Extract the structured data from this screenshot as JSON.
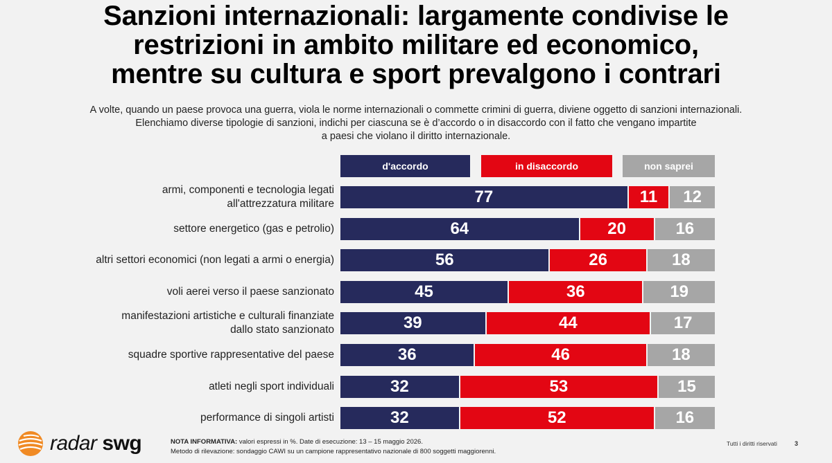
{
  "title_lines": [
    "Sanzioni internazionali: largamente condivise le",
    "restrizioni in ambito militare ed economico,",
    "mentre su cultura e sport prevalgono i contrari"
  ],
  "subtitle_lines": [
    "A volte, quando un paese provoca una guerra, viola le norme internazionali o commette crimini di guerra, diviene oggetto di sanzioni internazionali.",
    "Elenchiamo diverse tipologie di sanzioni, indichi per ciascuna se è d’accordo o in disaccordo con il fatto che vengano impartite",
    "a paesi che violano il diritto internazionale."
  ],
  "colors": {
    "accordo": "#262a5c",
    "disaccordo": "#e30613",
    "non_saprei": "#a6a6a6"
  },
  "chart_data": {
    "type": "bar",
    "orientation": "horizontal",
    "stacked": true,
    "title": "Sanzioni internazionali: largamente condivise le restrizioni in ambito militare ed economico, mentre su cultura e sport prevalgono i contrari",
    "legend": {
      "placement": "top",
      "entries": [
        "d'accordo",
        "in disaccordo",
        "non saprei"
      ]
    },
    "categories": [
      [
        "armi, componenti e tecnologia legati",
        "all'attrezzatura militare"
      ],
      [
        "settore energetico (gas e petrolio)"
      ],
      [
        "altri settori economici (non legati a armi o energia)"
      ],
      [
        "voli aerei verso il paese sanzionato"
      ],
      [
        "manifestazioni artistiche e culturali finanziate",
        "dallo stato sanzionato"
      ],
      [
        "squadre sportive rappresentative del paese"
      ],
      [
        "atleti negli sport individuali"
      ],
      [
        "performance di singoli artisti"
      ]
    ],
    "series": [
      {
        "name": "d'accordo",
        "values": [
          77,
          64,
          56,
          45,
          39,
          36,
          32,
          32
        ]
      },
      {
        "name": "in disaccordo",
        "values": [
          11,
          20,
          26,
          36,
          44,
          46,
          53,
          52
        ]
      },
      {
        "name": "non saprei",
        "values": [
          12,
          16,
          18,
          19,
          17,
          18,
          15,
          16
        ]
      }
    ],
    "xlim": [
      0,
      100
    ],
    "grid": false
  },
  "footer": {
    "logo_radar": "radar",
    "logo_swg": "swg",
    "note_label": "NOTA INFORMATIVA:",
    "note_line1": "valori espressi in %. Date di esecuzione: 13 – 15 maggio 2026.",
    "note_line2": "Metodo di rilevazione: sondaggio CAWI su un campione rappresentativo nazionale di 800 soggetti maggiorenni.",
    "rights": "Tutti i diritti riservati",
    "page": "3"
  }
}
